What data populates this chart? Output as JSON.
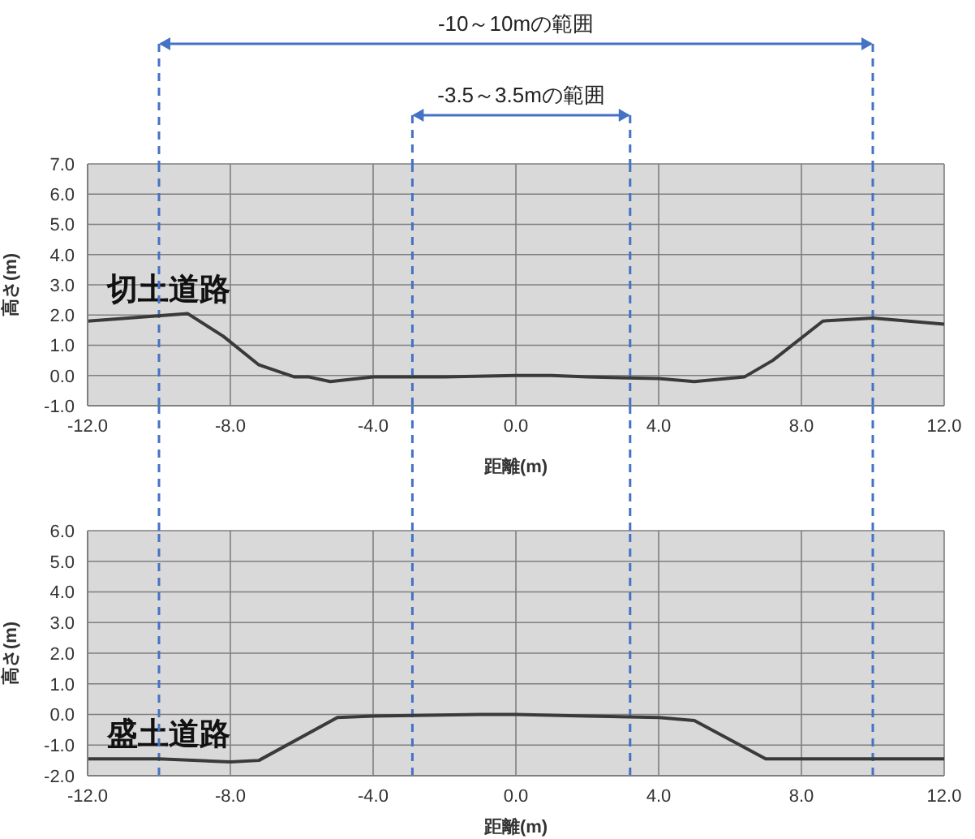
{
  "chart_data": [
    {
      "type": "line",
      "title": "切土道路",
      "xlabel": "距離(m)",
      "ylabel": "高さ(m)",
      "annotations": [
        "-10～10mの範囲",
        "-3.5～3.5mの範囲"
      ],
      "series": [
        {
          "color": "#3a3a3a",
          "x": [
            -12,
            -9.2,
            -8.2,
            -7.2,
            -6.2,
            -5.8,
            -5.2,
            -4,
            -2,
            0,
            1,
            2,
            4,
            5,
            6.4,
            7.2,
            8.6,
            10,
            12
          ],
          "values": [
            1.8,
            2.05,
            1.3,
            0.35,
            -0.05,
            -0.05,
            -0.2,
            -0.05,
            -0.05,
            0,
            0,
            -0.05,
            -0.1,
            -0.2,
            -0.05,
            0.5,
            1.8,
            1.9,
            1.7
          ]
        }
      ],
      "xlim": [
        -12,
        12
      ],
      "ylim": [
        -1,
        7
      ],
      "xticks": [
        {
          "value": -12,
          "label": "-12.0"
        },
        {
          "value": -8,
          "label": "-8.0"
        },
        {
          "value": -4,
          "label": "-4.0"
        },
        {
          "value": 0,
          "label": "0.0"
        },
        {
          "value": 4,
          "label": "4.0"
        },
        {
          "value": 8,
          "label": "8.0"
        },
        {
          "value": 12,
          "label": "12.0"
        }
      ],
      "yticks": [
        {
          "value": -1,
          "label": "-1.0"
        },
        {
          "value": 0,
          "label": "0.0"
        },
        {
          "value": 1,
          "label": "1.0"
        },
        {
          "value": 2,
          "label": "2.0"
        },
        {
          "value": 3,
          "label": "3.0"
        },
        {
          "value": 4,
          "label": "4.0"
        },
        {
          "value": 5,
          "label": "5.0"
        },
        {
          "value": 6,
          "label": "6.0"
        },
        {
          "value": 7,
          "label": "7.0"
        }
      ],
      "ref_lines": [
        {
          "axis": "x",
          "value": -10,
          "color": "#4472c4",
          "line_style": "dashed"
        },
        {
          "axis": "x",
          "value": -2.9,
          "color": "#4472c4",
          "line_style": "dashed"
        },
        {
          "axis": "x",
          "value": 3.2,
          "color": "#4472c4",
          "line_style": "dashed"
        },
        {
          "axis": "x",
          "value": 10,
          "color": "#4472c4",
          "line_style": "dashed"
        }
      ],
      "grid": true,
      "marker": "none",
      "line_style": "solid"
    },
    {
      "type": "line",
      "title": "盛土道路",
      "xlabel": "距離(m)",
      "ylabel": "高さ(m)",
      "series": [
        {
          "color": "#3a3a3a",
          "x": [
            -12,
            -10,
            -8,
            -7.2,
            -5,
            -4,
            -1,
            0,
            2,
            4,
            5,
            7,
            12
          ],
          "values": [
            -1.45,
            -1.45,
            -1.55,
            -1.5,
            -0.1,
            -0.05,
            0,
            0,
            -0.05,
            -0.1,
            -0.2,
            -1.45,
            -1.45
          ]
        }
      ],
      "xlim": [
        -12,
        12
      ],
      "ylim": [
        -2,
        6
      ],
      "xticks": [
        {
          "value": -12,
          "label": "-12.0"
        },
        {
          "value": -8,
          "label": "-8.0"
        },
        {
          "value": -4,
          "label": "-4.0"
        },
        {
          "value": 0,
          "label": "0.0"
        },
        {
          "value": 4,
          "label": "4.0"
        },
        {
          "value": 8,
          "label": "8.0"
        },
        {
          "value": 12,
          "label": "12.0"
        }
      ],
      "yticks": [
        {
          "value": -2,
          "label": "-2.0"
        },
        {
          "value": -1,
          "label": "-1.0"
        },
        {
          "value": 0,
          "label": "0.0"
        },
        {
          "value": 1,
          "label": "1.0"
        },
        {
          "value": 2,
          "label": "2.0"
        },
        {
          "value": 3,
          "label": "3.0"
        },
        {
          "value": 4,
          "label": "4.0"
        },
        {
          "value": 5,
          "label": "5.0"
        },
        {
          "value": 6,
          "label": "6.0"
        }
      ],
      "ref_lines": [
        {
          "axis": "x",
          "value": -10,
          "color": "#4472c4",
          "line_style": "dashed"
        },
        {
          "axis": "x",
          "value": -2.9,
          "color": "#4472c4",
          "line_style": "dashed"
        },
        {
          "axis": "x",
          "value": 3.2,
          "color": "#4472c4",
          "line_style": "dashed"
        },
        {
          "axis": "x",
          "value": 10,
          "color": "#4472c4",
          "line_style": "dashed"
        }
      ],
      "grid": true,
      "marker": "none",
      "line_style": "solid"
    }
  ]
}
